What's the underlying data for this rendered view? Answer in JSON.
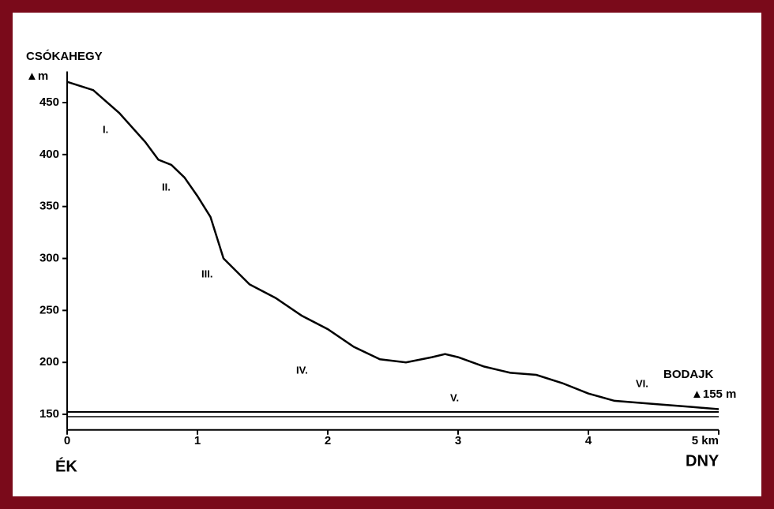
{
  "chart_data": {
    "type": "line",
    "title": "CSÓKAHEGY",
    "y_label": "▲m",
    "end_label": "BODAJK",
    "end_value_label": "▲155 m",
    "x_start_label": "ÉK",
    "x_end_label": "DNY",
    "annotations": [
      "I.",
      "II.",
      "III.",
      "IV.",
      "V.",
      "VI."
    ],
    "x": [
      0,
      0.2,
      0.4,
      0.6,
      0.7,
      0.8,
      0.9,
      1.0,
      1.1,
      1.2,
      1.4,
      1.6,
      1.8,
      2.0,
      2.2,
      2.4,
      2.6,
      2.8,
      2.9,
      3.0,
      3.2,
      3.4,
      3.6,
      3.8,
      4.0,
      4.2,
      4.5,
      4.8,
      5.0
    ],
    "values": [
      470,
      462,
      440,
      412,
      395,
      390,
      378,
      360,
      340,
      300,
      275,
      262,
      245,
      232,
      215,
      203,
      200,
      205,
      208,
      205,
      196,
      190,
      188,
      180,
      170,
      163,
      160,
      157,
      155
    ],
    "color": "#000000",
    "xlim": [
      0,
      5
    ],
    "xticks": [
      0,
      1,
      2,
      3,
      4,
      {
        "value": 5,
        "label": "5 km"
      }
    ],
    "ylim": [
      135,
      480
    ],
    "yticks": [
      150,
      200,
      250,
      300,
      350,
      400,
      450
    ]
  }
}
